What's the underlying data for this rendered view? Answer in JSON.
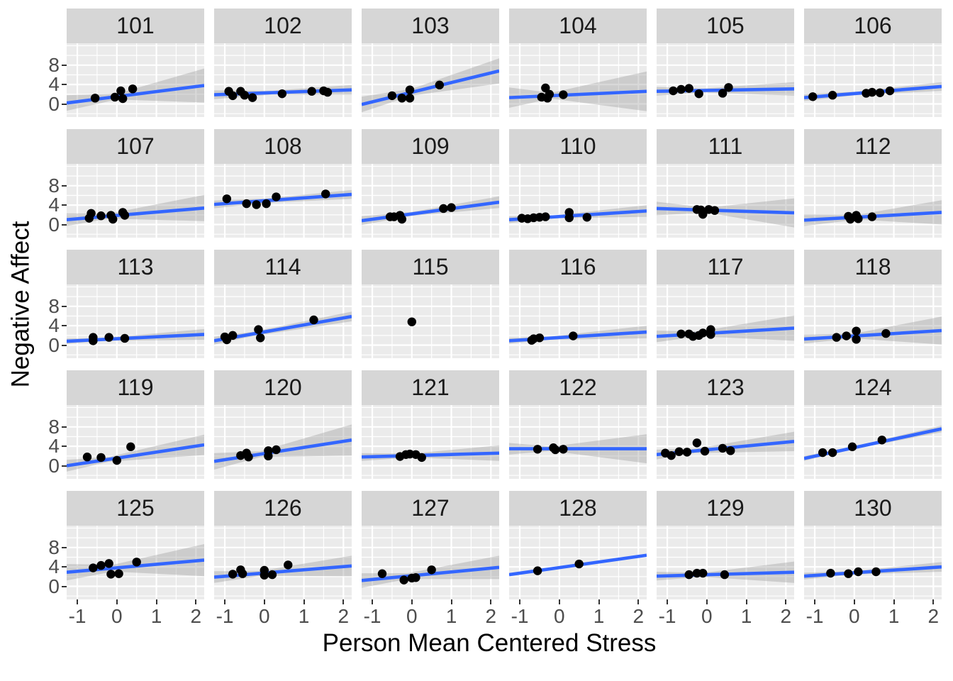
{
  "chart_data": {
    "type": "scatter",
    "title": "",
    "xlabel": "Person Mean Centered Stress",
    "ylabel": "Negative Affect",
    "xlim": [
      -1.27,
      2.21
    ],
    "ylim": [
      -2.7,
      12.5
    ],
    "x_ticks": [
      "-1",
      "0",
      "1",
      "2"
    ],
    "x_tick_values": [
      -1,
      0,
      1,
      2
    ],
    "y_ticks": [
      "0",
      "4",
      "8"
    ],
    "y_tick_values": [
      0,
      4,
      8
    ],
    "x_minor_gridlines": [
      -0.5,
      0.5,
      1.5
    ],
    "y_minor_gridlines": [
      -2,
      2,
      6,
      10,
      12
    ],
    "grid": true,
    "legend": "none",
    "facet_rows": 5,
    "facet_cols": 6,
    "series_style": {
      "points": "black dots",
      "fit_line": "linear smooth",
      "ci_band": "gray ribbon"
    },
    "facets": [
      {
        "label": "101",
        "points": [
          [
            -0.55,
            1.2
          ],
          [
            -0.05,
            1.4
          ],
          [
            0.1,
            2.7
          ],
          [
            0.15,
            1.1
          ],
          [
            0.4,
            3.1
          ]
        ],
        "line": [
          0.2,
          3.8
        ],
        "band": [
          1.6,
          0.6,
          3.5
        ],
        "pinch": 0
      },
      {
        "label": "102",
        "points": [
          [
            -0.9,
            2.6
          ],
          [
            -0.8,
            1.7
          ],
          [
            -0.6,
            2.6
          ],
          [
            -0.5,
            1.8
          ],
          [
            -0.3,
            1.3
          ],
          [
            0.45,
            2.1
          ],
          [
            1.2,
            2.6
          ],
          [
            1.5,
            2.7
          ],
          [
            1.6,
            2.4
          ]
        ],
        "line": [
          1.9,
          2.9
        ],
        "band": [
          0.9,
          0.4,
          1.0
        ],
        "pinch": 0.2
      },
      {
        "label": "103",
        "points": [
          [
            -0.5,
            1.7
          ],
          [
            -0.25,
            1.2
          ],
          [
            -0.05,
            2.9
          ],
          [
            -0.05,
            1.2
          ],
          [
            0.7,
            3.9
          ]
        ],
        "line": [
          -0.1,
          6.8
        ],
        "band": [
          1.6,
          0.7,
          2.6
        ],
        "pinch": 0
      },
      {
        "label": "104",
        "points": [
          [
            -0.45,
            1.4
          ],
          [
            -0.35,
            3.3
          ],
          [
            -0.3,
            1.2
          ],
          [
            -0.25,
            2.0
          ],
          [
            0.1,
            1.9
          ]
        ],
        "line": [
          1.3,
          2.6
        ],
        "band": [
          2.1,
          0.6,
          4.1
        ],
        "pinch": -0.2
      },
      {
        "label": "105",
        "points": [
          [
            -0.85,
            2.7
          ],
          [
            -0.65,
            3.0
          ],
          [
            -0.45,
            3.2
          ],
          [
            -0.2,
            2.1
          ],
          [
            0.4,
            2.2
          ],
          [
            0.55,
            3.4
          ]
        ],
        "line": [
          2.6,
          3.1
        ],
        "band": [
          0.9,
          0.4,
          1.4
        ],
        "pinch": -0.1
      },
      {
        "label": "106",
        "points": [
          [
            -1.05,
            1.5
          ],
          [
            -0.55,
            1.8
          ],
          [
            0.3,
            2.2
          ],
          [
            0.45,
            2.4
          ],
          [
            0.65,
            2.3
          ],
          [
            0.9,
            2.7
          ]
        ],
        "line": [
          1.3,
          3.6
        ],
        "band": [
          0.7,
          0.35,
          0.9
        ],
        "pinch": 0.1
      },
      {
        "label": "107",
        "points": [
          [
            -0.7,
            1.3
          ],
          [
            -0.65,
            2.3
          ],
          [
            -0.4,
            1.8
          ],
          [
            -0.15,
            1.9
          ],
          [
            -0.1,
            1.1
          ],
          [
            0.15,
            2.5
          ],
          [
            0.2,
            1.9
          ]
        ],
        "line": [
          1.0,
          3.4
        ],
        "band": [
          1.3,
          0.5,
          2.7
        ],
        "pinch": -0.2
      },
      {
        "label": "108",
        "points": [
          [
            -0.95,
            5.3
          ],
          [
            -0.45,
            4.3
          ],
          [
            -0.2,
            4.1
          ],
          [
            0.05,
            4.3
          ],
          [
            0.3,
            5.7
          ],
          [
            1.55,
            6.3
          ]
        ],
        "line": [
          4.15,
          6.2
        ],
        "band": [
          0.8,
          0.45,
          0.9
        ],
        "pinch": 0
      },
      {
        "label": "109",
        "points": [
          [
            -0.55,
            1.6
          ],
          [
            -0.45,
            1.6
          ],
          [
            -0.3,
            1.9
          ],
          [
            -0.25,
            1.1
          ],
          [
            0.8,
            3.3
          ],
          [
            1.0,
            3.5
          ]
        ],
        "line": [
          0.8,
          4.6
        ],
        "band": [
          0.9,
          0.4,
          1.2
        ],
        "pinch": 0
      },
      {
        "label": "110",
        "points": [
          [
            -0.95,
            1.3
          ],
          [
            -0.8,
            1.2
          ],
          [
            -0.65,
            1.4
          ],
          [
            -0.5,
            1.5
          ],
          [
            -0.35,
            1.6
          ],
          [
            0.25,
            2.5
          ],
          [
            0.25,
            1.4
          ],
          [
            0.7,
            1.5
          ]
        ],
        "line": [
          1.0,
          2.8
        ],
        "band": [
          0.7,
          0.3,
          1.2
        ],
        "pinch": -0.1
      },
      {
        "label": "111",
        "points": [
          [
            -0.25,
            3.1
          ],
          [
            -0.15,
            3.0
          ],
          [
            -0.1,
            2.1
          ],
          [
            0.05,
            3.1
          ],
          [
            0.2,
            2.9
          ]
        ],
        "line": [
          3.3,
          2.4
        ],
        "band": [
          1.4,
          0.5,
          3.0
        ],
        "pinch": 0
      },
      {
        "label": "112",
        "points": [
          [
            -0.15,
            1.7
          ],
          [
            -0.1,
            1.1
          ],
          [
            0.05,
            1.9
          ],
          [
            0.1,
            1.2
          ],
          [
            0.45,
            1.6
          ]
        ],
        "line": [
          0.9,
          2.5
        ],
        "band": [
          1.2,
          0.5,
          2.5
        ],
        "pinch": 0.1
      },
      {
        "label": "113",
        "points": [
          [
            -0.6,
            1.6
          ],
          [
            -0.6,
            0.9
          ],
          [
            -0.2,
            1.6
          ],
          [
            0.2,
            1.4
          ]
        ],
        "line": [
          0.8,
          2.2
        ],
        "band": [
          0.55,
          0.3,
          1.1
        ],
        "pinch": -0.3
      },
      {
        "label": "114",
        "points": [
          [
            -1.0,
            1.7
          ],
          [
            -0.95,
            1.1
          ],
          [
            -0.8,
            2.0
          ],
          [
            -0.15,
            3.2
          ],
          [
            -0.1,
            1.5
          ],
          [
            1.25,
            5.2
          ]
        ],
        "line": [
          0.9,
          5.9
        ],
        "band": [
          0.8,
          0.45,
          1.0
        ],
        "pinch": -0.3
      },
      {
        "label": "115",
        "points": [
          [
            0,
            4.8
          ]
        ],
        "line": null,
        "band": null,
        "pinch": 0
      },
      {
        "label": "116",
        "points": [
          [
            -0.7,
            1.0
          ],
          [
            -0.65,
            1.3
          ],
          [
            -0.5,
            1.5
          ],
          [
            0.35,
            1.9
          ]
        ],
        "line": [
          0.9,
          2.7
        ],
        "band": [
          0.6,
          0.3,
          1.3
        ],
        "pinch": -0.3
      },
      {
        "label": "117",
        "points": [
          [
            -0.65,
            2.3
          ],
          [
            -0.45,
            2.3
          ],
          [
            -0.35,
            1.8
          ],
          [
            -0.2,
            2.0
          ],
          [
            -0.1,
            2.5
          ],
          [
            0.1,
            3.2
          ],
          [
            0.1,
            2.2
          ]
        ],
        "line": [
          1.8,
          3.5
        ],
        "band": [
          1.2,
          0.5,
          2.6
        ],
        "pinch": -0.2
      },
      {
        "label": "118",
        "points": [
          [
            -0.45,
            1.6
          ],
          [
            -0.2,
            1.9
          ],
          [
            0.05,
            2.9
          ],
          [
            0.05,
            1.2
          ],
          [
            0.8,
            2.4
          ]
        ],
        "line": [
          1.25,
          3.0
        ],
        "band": [
          0.9,
          0.5,
          2.9
        ],
        "pinch": 0
      },
      {
        "label": "119",
        "points": [
          [
            -0.75,
            1.8
          ],
          [
            -0.4,
            1.7
          ],
          [
            0.0,
            1.1
          ],
          [
            0.35,
            3.9
          ]
        ],
        "line": [
          0.0,
          4.3
        ],
        "band": [
          1.2,
          0.5,
          2.1
        ],
        "pinch": -0.2
      },
      {
        "label": "120",
        "points": [
          [
            -0.6,
            2.1
          ],
          [
            -0.45,
            2.6
          ],
          [
            -0.4,
            1.8
          ],
          [
            0.1,
            3.1
          ],
          [
            0.1,
            2.0
          ],
          [
            0.3,
            3.3
          ]
        ],
        "line": [
          0.9,
          5.3
        ],
        "band": [
          1.7,
          0.6,
          3.2
        ],
        "pinch": -0.1
      },
      {
        "label": "121",
        "points": [
          [
            -0.3,
            1.9
          ],
          [
            -0.15,
            2.3
          ],
          [
            -0.05,
            2.4
          ],
          [
            0.1,
            2.3
          ],
          [
            0.25,
            1.7
          ]
        ],
        "line": [
          1.8,
          2.6
        ],
        "band": [
          0.8,
          0.4,
          1.6
        ],
        "pinch": 0
      },
      {
        "label": "122",
        "points": [
          [
            -0.55,
            3.4
          ],
          [
            -0.15,
            3.7
          ],
          [
            -0.1,
            3.3
          ],
          [
            0.1,
            3.4
          ]
        ],
        "line": [
          3.5,
          3.5
        ],
        "band": [
          1.2,
          0.45,
          3.0
        ],
        "pinch": -0.2
      },
      {
        "label": "123",
        "points": [
          [
            -1.05,
            2.6
          ],
          [
            -0.9,
            2.1
          ],
          [
            -0.7,
            2.9
          ],
          [
            -0.5,
            2.8
          ],
          [
            -0.25,
            4.7
          ],
          [
            -0.05,
            3.0
          ],
          [
            0.4,
            3.6
          ],
          [
            0.6,
            3.1
          ]
        ],
        "line": [
          2.3,
          5.0
        ],
        "band": [
          1.0,
          0.45,
          2.0
        ],
        "pinch": -0.3
      },
      {
        "label": "124",
        "points": [
          [
            -0.8,
            2.7
          ],
          [
            -0.55,
            2.7
          ],
          [
            -0.05,
            3.9
          ],
          [
            0.7,
            5.3
          ]
        ],
        "line": [
          1.5,
          7.6
        ],
        "band": [
          0.5,
          0.25,
          0.7
        ],
        "pinch": 0
      },
      {
        "label": "125",
        "points": [
          [
            -0.6,
            3.8
          ],
          [
            -0.4,
            4.3
          ],
          [
            -0.2,
            4.7
          ],
          [
            -0.15,
            2.5
          ],
          [
            0.05,
            2.6
          ],
          [
            0.5,
            5.0
          ]
        ],
        "line": [
          2.9,
          5.4
        ],
        "band": [
          1.7,
          0.7,
          3.3
        ],
        "pinch": -0.1
      },
      {
        "label": "126",
        "points": [
          [
            -0.8,
            2.5
          ],
          [
            -0.6,
            3.4
          ],
          [
            -0.55,
            2.6
          ],
          [
            0.0,
            3.3
          ],
          [
            0.0,
            2.3
          ],
          [
            0.2,
            2.4
          ],
          [
            0.6,
            4.4
          ]
        ],
        "line": [
          1.9,
          4.2
        ],
        "band": [
          1.2,
          0.5,
          2.1
        ],
        "pinch": -0.1
      },
      {
        "label": "127",
        "points": [
          [
            -0.75,
            2.6
          ],
          [
            -0.2,
            1.3
          ],
          [
            0.0,
            1.7
          ],
          [
            0.1,
            1.8
          ],
          [
            0.5,
            3.4
          ]
        ],
        "line": [
          1.2,
          3.9
        ],
        "band": [
          1.5,
          0.6,
          2.4
        ],
        "pinch": -0.1
      },
      {
        "label": "128",
        "points": [
          [
            -0.55,
            3.2
          ],
          [
            0.5,
            4.6
          ]
        ],
        "line": [
          2.4,
          6.4
        ],
        "band": null,
        "pinch": 0
      },
      {
        "label": "129",
        "points": [
          [
            -0.45,
            2.4
          ],
          [
            -0.25,
            2.7
          ],
          [
            -0.1,
            2.7
          ],
          [
            0.45,
            2.4
          ]
        ],
        "line": [
          2.1,
          2.9
        ],
        "band": [
          0.9,
          0.4,
          2.2
        ],
        "pinch": -0.1
      },
      {
        "label": "130",
        "points": [
          [
            -0.6,
            2.7
          ],
          [
            -0.15,
            2.6
          ],
          [
            0.1,
            3.0
          ],
          [
            0.55,
            3.0
          ]
        ],
        "line": [
          2.1,
          4.0
        ],
        "band": [
          0.7,
          0.35,
          1.0
        ],
        "pinch": 0
      }
    ]
  },
  "style": {
    "line_color": "#3366FF",
    "point_color": "#000000",
    "band_color": "#9A9A9A",
    "band_opacity": 0.38,
    "panel_bg": "#EBEBEB",
    "strip_bg": "#D6D6D6",
    "grid_color": "#FFFFFF",
    "tick_color": "#333333",
    "tick_label_color": "#4D4D4D",
    "axis_title_color": "#000000",
    "strip_text_color": "#1A1A1A"
  }
}
